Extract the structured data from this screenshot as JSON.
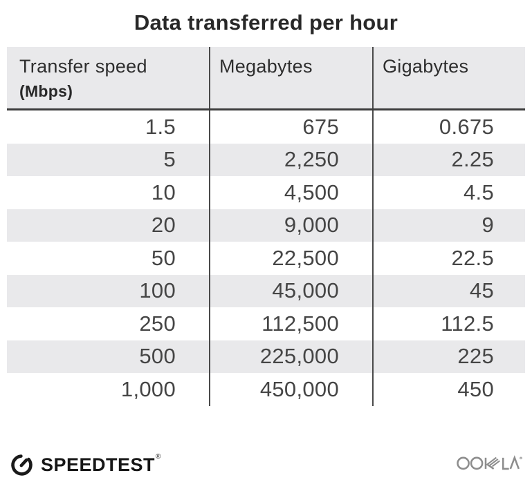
{
  "title": "Data transferred per hour",
  "chart_data": {
    "type": "table",
    "title": "Data transferred per hour",
    "columns": [
      "Transfer speed (Mbps)",
      "Megabytes",
      "Gigabytes"
    ],
    "rows": [
      [
        1.5,
        675,
        0.675
      ],
      [
        5,
        2250,
        2.25
      ],
      [
        10,
        4500,
        4.5
      ],
      [
        20,
        9000,
        9
      ],
      [
        50,
        22500,
        22.5
      ],
      [
        100,
        45000,
        45
      ],
      [
        250,
        112500,
        112.5
      ],
      [
        500,
        225000,
        225
      ],
      [
        1000,
        450000,
        450
      ]
    ]
  },
  "table": {
    "header": {
      "col1_label": "Transfer speed",
      "col1_sublabel": "(Mbps)",
      "col2_label": "Megabytes",
      "col3_label": "Gigabytes"
    },
    "rows_display": [
      [
        "1.5",
        "675",
        "0.675"
      ],
      [
        "5",
        "2,250",
        "2.25"
      ],
      [
        "10",
        "4,500",
        "4.5"
      ],
      [
        "20",
        "9,000",
        "9"
      ],
      [
        "50",
        "22,500",
        "22.5"
      ],
      [
        "100",
        "45,000",
        "45"
      ],
      [
        "250",
        "112,500",
        "112.5"
      ],
      [
        "500",
        "225,000",
        "225"
      ],
      [
        "1,000",
        "450,000",
        "450"
      ]
    ]
  },
  "footer": {
    "brand": "SPEEDTEST",
    "brand_trademark": "®",
    "company": "OOKLA",
    "company_trademark": "®"
  },
  "colors": {
    "header_bg": "#e9e9eb",
    "stripe_bg": "#e9e9eb",
    "column_divider": "#4a4a4a",
    "header_rule": "#3c3c3c",
    "title_text": "#282828",
    "number_text": "#454545",
    "logo_black": "#1a1a1a",
    "ookla_gray": "#8d8d8d"
  }
}
